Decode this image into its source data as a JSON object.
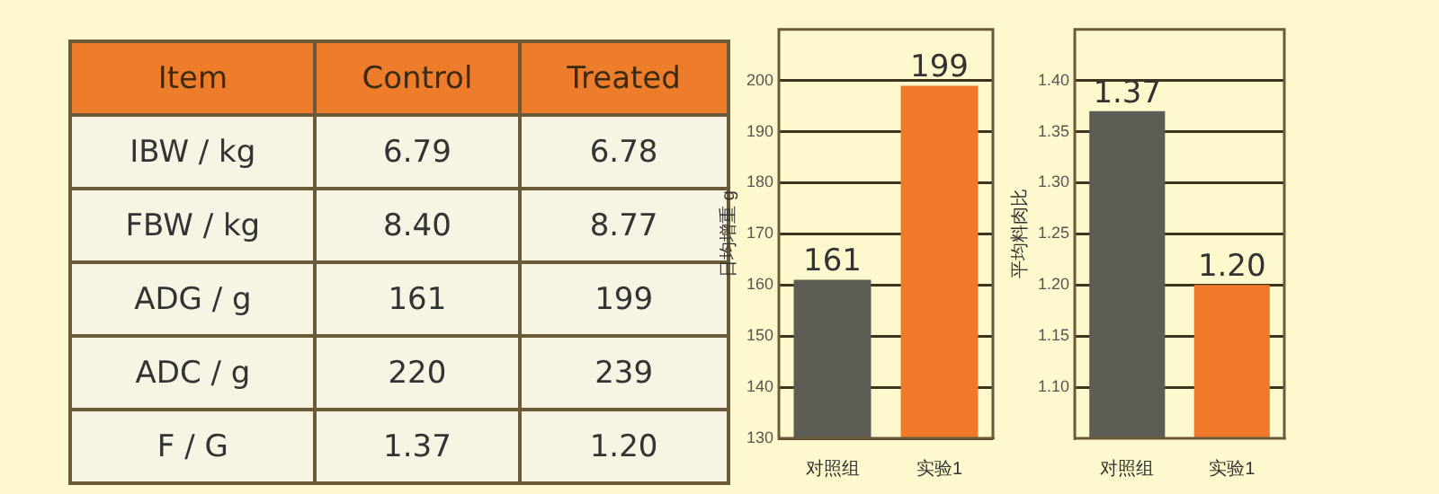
{
  "chart_data": [
    {
      "type": "other",
      "categories": [
        "Item",
        "Control",
        "Treated"
      ],
      "annotations": [
        "IBW / kg",
        "6.79",
        "6.78",
        "FBW / kg",
        "8.40",
        "8.77",
        "ADG / g",
        "161",
        "199",
        "ADC / g",
        "220",
        "239",
        "F / G",
        "1.37",
        "1.20"
      ]
    },
    {
      "type": "bar",
      "categories": [
        "对照组",
        "实验1"
      ],
      "values": [
        161,
        199
      ],
      "colors": [
        "#5e5d55",
        "#f07a2a"
      ],
      "ylim": [
        130,
        210
      ],
      "yticks": [
        130,
        140,
        150,
        160,
        170,
        180,
        190,
        200
      ],
      "ylabel": "日均增重 g",
      "grid": "y",
      "data_labels": true
    },
    {
      "type": "bar",
      "categories": [
        "对照组",
        "实验1"
      ],
      "values": [
        1.37,
        1.2
      ],
      "colors": [
        "#5e5d55",
        "#f07a2a"
      ],
      "ylim": [
        1.05,
        1.45
      ],
      "yticks": [
        {
          "value": 1.1,
          "label": "1.10"
        },
        {
          "value": 1.15,
          "label": "1.15"
        },
        {
          "value": 1.2,
          "label": "1.20"
        },
        {
          "value": 1.25,
          "label": "1.25"
        },
        {
          "value": 1.3,
          "label": "1.30"
        },
        {
          "value": 1.35,
          "label": "1.35"
        },
        {
          "value": 1.4,
          "label": "1.40"
        }
      ],
      "ylabel": "平均料肉比",
      "grid": "y",
      "data_labels": true,
      "value_labels": [
        "1.37",
        "1.20"
      ]
    }
  ]
}
